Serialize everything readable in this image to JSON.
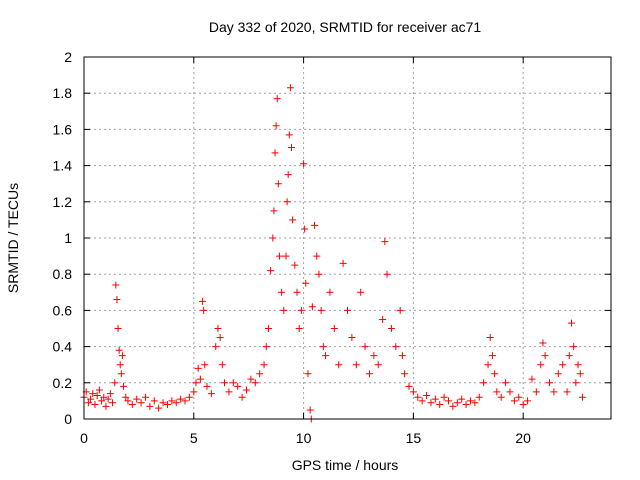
{
  "chart_data": {
    "type": "scatter",
    "title": "Day 332 of 2020, SRMTID for receiver ac71",
    "xlabel": "GPS time / hours",
    "ylabel": "SRMTID / TECUs",
    "xlim": [
      0,
      24
    ],
    "ylim": [
      0,
      2
    ],
    "x_ticks": [
      0,
      5,
      10,
      15,
      20
    ],
    "y_ticks": [
      0,
      0.2,
      0.4,
      0.6,
      0.8,
      1,
      1.2,
      1.4,
      1.6,
      1.8,
      2
    ],
    "x_tick_labels": [
      "0",
      "5",
      "10",
      "15",
      "20"
    ],
    "y_tick_labels": [
      "0",
      "0.2",
      "0.4",
      "0.6",
      "0.8",
      "1",
      "1.2",
      "1.4",
      "1.6",
      "1.8",
      "2"
    ],
    "grid": true,
    "marker": "+",
    "color": "#ff0000",
    "series": [
      {
        "name": "SRMTID",
        "points": [
          [
            0.0,
            0.12
          ],
          [
            0.1,
            0.15
          ],
          [
            0.2,
            0.09
          ],
          [
            0.3,
            0.11
          ],
          [
            0.4,
            0.14
          ],
          [
            0.5,
            0.08
          ],
          [
            0.6,
            0.13
          ],
          [
            0.7,
            0.16
          ],
          [
            0.8,
            0.1
          ],
          [
            0.9,
            0.12
          ],
          [
            1.0,
            0.07
          ],
          [
            1.1,
            0.11
          ],
          [
            1.2,
            0.14
          ],
          [
            1.3,
            0.09
          ],
          [
            1.4,
            0.2
          ],
          [
            1.45,
            0.74
          ],
          [
            1.5,
            0.66
          ],
          [
            1.55,
            0.5
          ],
          [
            1.6,
            0.38
          ],
          [
            1.65,
            0.3
          ],
          [
            1.7,
            0.25
          ],
          [
            1.75,
            0.35
          ],
          [
            1.8,
            0.18
          ],
          [
            1.9,
            0.12
          ],
          [
            2.0,
            0.1
          ],
          [
            2.2,
            0.08
          ],
          [
            2.4,
            0.11
          ],
          [
            2.6,
            0.09
          ],
          [
            2.8,
            0.12
          ],
          [
            3.0,
            0.07
          ],
          [
            3.2,
            0.1
          ],
          [
            3.4,
            0.06
          ],
          [
            3.6,
            0.09
          ],
          [
            3.8,
            0.08
          ],
          [
            4.0,
            0.1
          ],
          [
            4.2,
            0.09
          ],
          [
            4.4,
            0.11
          ],
          [
            4.6,
            0.1
          ],
          [
            4.8,
            0.12
          ],
          [
            5.0,
            0.15
          ],
          [
            5.1,
            0.2
          ],
          [
            5.2,
            0.28
          ],
          [
            5.3,
            0.22
          ],
          [
            5.4,
            0.65
          ],
          [
            5.45,
            0.6
          ],
          [
            5.5,
            0.3
          ],
          [
            5.6,
            0.18
          ],
          [
            5.8,
            0.14
          ],
          [
            6.0,
            0.4
          ],
          [
            6.1,
            0.5
          ],
          [
            6.2,
            0.45
          ],
          [
            6.3,
            0.3
          ],
          [
            6.4,
            0.2
          ],
          [
            6.6,
            0.15
          ],
          [
            6.8,
            0.2
          ],
          [
            7.0,
            0.18
          ],
          [
            7.2,
            0.12
          ],
          [
            7.4,
            0.16
          ],
          [
            7.6,
            0.22
          ],
          [
            7.8,
            0.2
          ],
          [
            8.0,
            0.25
          ],
          [
            8.2,
            0.3
          ],
          [
            8.3,
            0.4
          ],
          [
            8.4,
            0.5
          ],
          [
            8.5,
            0.82
          ],
          [
            8.6,
            1.0
          ],
          [
            8.65,
            1.15
          ],
          [
            8.7,
            1.47
          ],
          [
            8.75,
            1.62
          ],
          [
            8.8,
            1.77
          ],
          [
            8.85,
            1.3
          ],
          [
            8.9,
            0.9
          ],
          [
            9.0,
            0.7
          ],
          [
            9.1,
            0.6
          ],
          [
            9.2,
            0.9
          ],
          [
            9.25,
            1.2
          ],
          [
            9.3,
            1.35
          ],
          [
            9.35,
            1.57
          ],
          [
            9.4,
            1.83
          ],
          [
            9.45,
            1.5
          ],
          [
            9.5,
            1.1
          ],
          [
            9.6,
            0.85
          ],
          [
            9.7,
            0.7
          ],
          [
            9.8,
            0.5
          ],
          [
            9.9,
            0.6
          ],
          [
            10.0,
            1.41
          ],
          [
            10.05,
            1.05
          ],
          [
            10.1,
            0.75
          ],
          [
            10.2,
            0.25
          ],
          [
            10.3,
            0.05
          ],
          [
            10.35,
            0.0
          ],
          [
            10.4,
            0.62
          ],
          [
            10.5,
            1.07
          ],
          [
            10.6,
            0.9
          ],
          [
            10.7,
            0.8
          ],
          [
            10.8,
            0.6
          ],
          [
            10.9,
            0.4
          ],
          [
            11.0,
            0.35
          ],
          [
            11.2,
            0.7
          ],
          [
            11.4,
            0.5
          ],
          [
            11.6,
            0.3
          ],
          [
            11.8,
            0.86
          ],
          [
            12.0,
            0.6
          ],
          [
            12.2,
            0.45
          ],
          [
            12.4,
            0.3
          ],
          [
            12.6,
            0.7
          ],
          [
            12.8,
            0.4
          ],
          [
            13.0,
            0.25
          ],
          [
            13.2,
            0.35
          ],
          [
            13.4,
            0.3
          ],
          [
            13.6,
            0.55
          ],
          [
            13.7,
            0.98
          ],
          [
            13.8,
            0.8
          ],
          [
            14.0,
            0.5
          ],
          [
            14.2,
            0.4
          ],
          [
            14.4,
            0.6
          ],
          [
            14.5,
            0.35
          ],
          [
            14.6,
            0.25
          ],
          [
            14.8,
            0.18
          ],
          [
            15.0,
            0.15
          ],
          [
            15.2,
            0.12
          ],
          [
            15.4,
            0.1
          ],
          [
            15.6,
            0.13
          ],
          [
            15.8,
            0.09
          ],
          [
            16.0,
            0.11
          ],
          [
            16.2,
            0.08
          ],
          [
            16.4,
            0.12
          ],
          [
            16.6,
            0.1
          ],
          [
            16.8,
            0.07
          ],
          [
            17.0,
            0.09
          ],
          [
            17.2,
            0.11
          ],
          [
            17.4,
            0.08
          ],
          [
            17.6,
            0.1
          ],
          [
            17.8,
            0.09
          ],
          [
            18.0,
            0.12
          ],
          [
            18.2,
            0.2
          ],
          [
            18.4,
            0.3
          ],
          [
            18.5,
            0.45
          ],
          [
            18.6,
            0.35
          ],
          [
            18.7,
            0.25
          ],
          [
            18.8,
            0.15
          ],
          [
            19.0,
            0.12
          ],
          [
            19.2,
            0.2
          ],
          [
            19.4,
            0.15
          ],
          [
            19.6,
            0.1
          ],
          [
            19.8,
            0.12
          ],
          [
            20.0,
            0.08
          ],
          [
            20.2,
            0.1
          ],
          [
            20.4,
            0.22
          ],
          [
            20.6,
            0.15
          ],
          [
            20.8,
            0.3
          ],
          [
            20.9,
            0.42
          ],
          [
            21.0,
            0.35
          ],
          [
            21.2,
            0.2
          ],
          [
            21.4,
            0.15
          ],
          [
            21.6,
            0.25
          ],
          [
            21.8,
            0.3
          ],
          [
            22.0,
            0.15
          ],
          [
            22.1,
            0.35
          ],
          [
            22.2,
            0.53
          ],
          [
            22.3,
            0.4
          ],
          [
            22.4,
            0.2
          ],
          [
            22.5,
            0.3
          ],
          [
            22.6,
            0.25
          ],
          [
            22.7,
            0.12
          ]
        ]
      }
    ]
  }
}
